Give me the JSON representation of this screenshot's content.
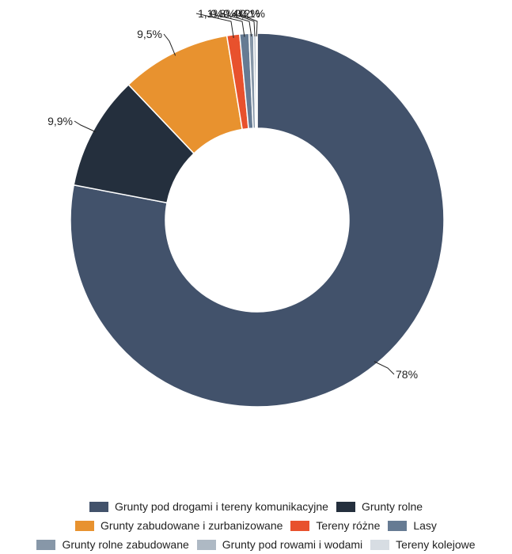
{
  "chart_data": {
    "type": "pie",
    "donut": true,
    "title": "",
    "series": [
      {
        "name": "Grunty pod drogami i tereny komunikacyjne",
        "value": 78.0,
        "label": "78%",
        "color": "#42526b"
      },
      {
        "name": "Grunty rolne",
        "value": 9.9,
        "label": "9,9%",
        "color": "#242f3d"
      },
      {
        "name": "Grunty zabudowane i zurbanizowane",
        "value": 9.5,
        "label": "9,5%",
        "color": "#e8922f"
      },
      {
        "name": "Tereny różne",
        "value": 1.1,
        "label": "1,1%",
        "color": "#e8512d"
      },
      {
        "name": "Lasy",
        "value": 0.8,
        "label": "0,8%",
        "color": "#667b93"
      },
      {
        "name": "Grunty rolne zabudowane",
        "value": 0.4,
        "label": "0,4%",
        "color": "#8797a8"
      },
      {
        "name": "Grunty pod rowami i wodami",
        "value": 0.2,
        "label": "0,2%",
        "color": "#aeb9c4"
      },
      {
        "name": "Tereny kolejowe",
        "value": 0.1,
        "label": "0,1%",
        "color": "#d7dde3"
      }
    ],
    "legend_position": "bottom"
  }
}
